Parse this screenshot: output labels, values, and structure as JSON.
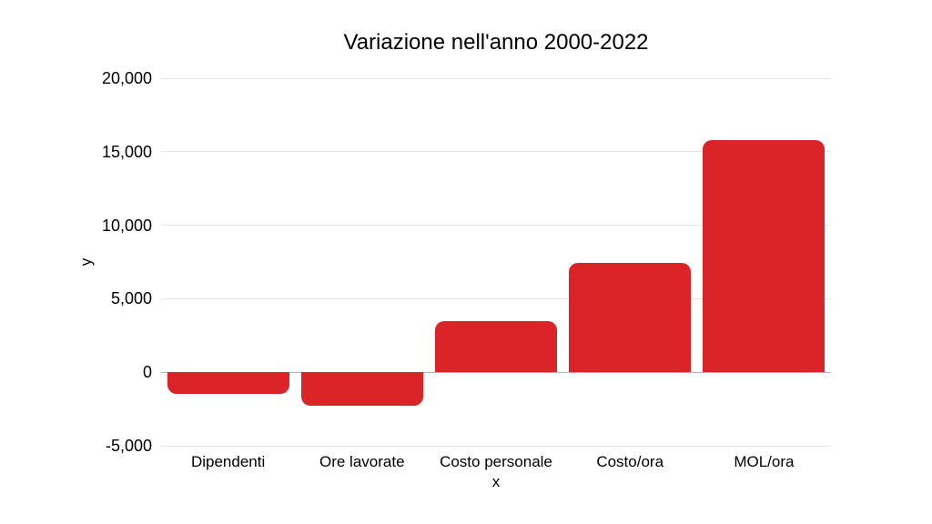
{
  "chart_data": {
    "type": "bar",
    "title": "Variazione nell'anno 2000-2022",
    "xlabel": "x",
    "ylabel": "y",
    "categories": [
      "Dipendenti",
      "Ore lavorate",
      "Costo personale",
      "Costo/ora",
      "MOL/ora"
    ],
    "values": [
      -1500,
      -2300,
      3500,
      7450,
      15800
    ],
    "ylim": [
      -5000,
      20000
    ],
    "ytick_step": 5000,
    "ytick_labels": [
      "20,000",
      "15,000",
      "10,000",
      "5,000",
      "0",
      "-5,000"
    ],
    "grid": "horizontal",
    "legend": "none",
    "bar_color": "#db2428",
    "gridline_color": "#e6e6e6",
    "zero_line_color": "#b3b3b3",
    "background_color": "#ffffff",
    "bar_corner_radius": 10
  }
}
